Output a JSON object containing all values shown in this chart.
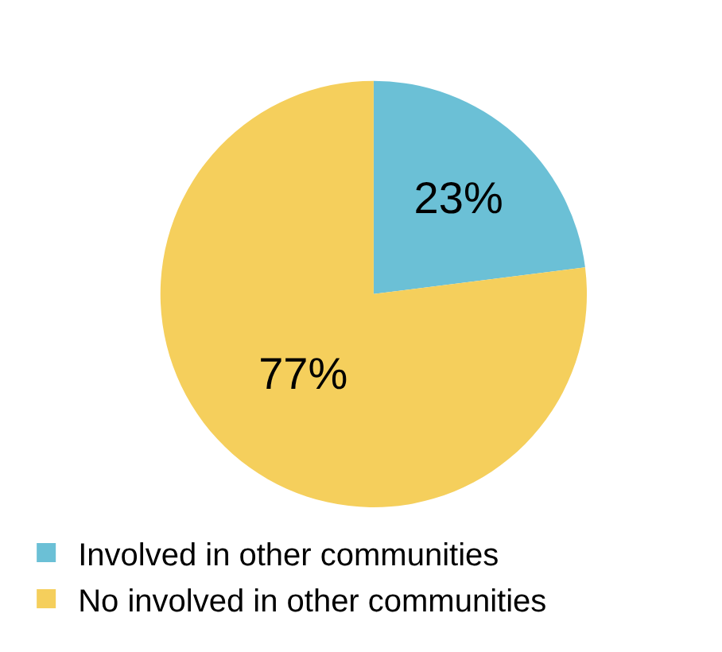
{
  "chart_data": {
    "type": "pie",
    "categories": [
      "Involved in other communities",
      "No involved in other communities"
    ],
    "values": [
      23,
      77
    ],
    "colors": [
      "#6bc0d6",
      "#f5cf5c"
    ],
    "value_labels": [
      "23%",
      "77%"
    ],
    "legend": "bottom left"
  }
}
